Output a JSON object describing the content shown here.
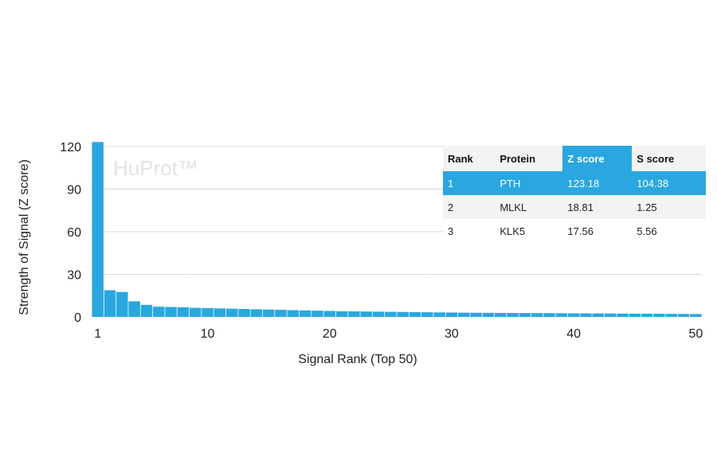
{
  "chart_data": {
    "type": "bar",
    "watermark": "HuProt™",
    "xlabel": "Signal Rank (Top 50)",
    "ylabel": "Strength of Signal (Z score)",
    "x_ticks": [
      "1",
      "10",
      "20",
      "30",
      "40",
      "50"
    ],
    "y_ticks": [
      "0",
      "30",
      "60",
      "90",
      "120"
    ],
    "xlim": [
      1,
      50
    ],
    "ylim": [
      0,
      120
    ],
    "grid": true,
    "bar_color": "#2aa7e0",
    "x": [
      1,
      2,
      3,
      4,
      5,
      6,
      7,
      8,
      9,
      10,
      11,
      12,
      13,
      14,
      15,
      16,
      17,
      18,
      19,
      20,
      21,
      22,
      23,
      24,
      25,
      26,
      27,
      28,
      29,
      30,
      31,
      32,
      33,
      34,
      35,
      36,
      37,
      38,
      39,
      40,
      41,
      42,
      43,
      44,
      45,
      46,
      47,
      48,
      49,
      50
    ],
    "values": [
      123.18,
      18.81,
      17.56,
      11.0,
      8.5,
      7.2,
      7.0,
      6.8,
      6.4,
      6.2,
      6.0,
      5.8,
      5.6,
      5.4,
      5.2,
      5.0,
      4.8,
      4.6,
      4.4,
      4.2,
      4.0,
      3.9,
      3.8,
      3.7,
      3.6,
      3.5,
      3.4,
      3.3,
      3.2,
      3.1,
      3.0,
      2.95,
      2.9,
      2.85,
      2.8,
      2.75,
      2.7,
      2.65,
      2.6,
      2.55,
      2.5,
      2.45,
      2.4,
      2.35,
      2.3,
      2.25,
      2.2,
      2.15,
      2.1,
      2.05
    ]
  },
  "table": {
    "headers": [
      "Rank",
      "Protein",
      "Z score",
      "S score"
    ],
    "rows": [
      [
        "1",
        "PTH",
        "123.18",
        "104.38"
      ],
      [
        "2",
        "MLKL",
        "18.81",
        "1.25"
      ],
      [
        "3",
        "KLK5",
        "17.56",
        "5.56"
      ]
    ]
  }
}
